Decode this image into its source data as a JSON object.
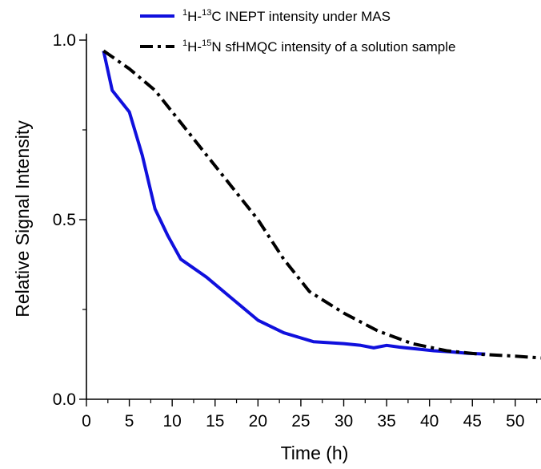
{
  "chart_data": {
    "type": "line",
    "title": "",
    "xlabel": "Time (h)",
    "ylabel": "Relative Signal Intensity",
    "xlim": [
      0,
      53
    ],
    "ylim": [
      0.0,
      1.0
    ],
    "xticks": [
      0,
      5,
      10,
      15,
      20,
      25,
      30,
      35,
      40,
      45,
      50
    ],
    "yticks": [
      0.0,
      0.5,
      1.0
    ],
    "ytick_labels": [
      "0.0",
      "0.5",
      "1.0"
    ],
    "grid": false,
    "legend_position": "top",
    "series": [
      {
        "name": "1H-13C INEPT intensity under MAS",
        "legend_parts": {
          "sup1": "1",
          "base1": "H-",
          "sup2": "13",
          "base2": "C INEPT intensity under MAS"
        },
        "color": "#1010dd",
        "style": "solid",
        "x": [
          2,
          3,
          5,
          6.5,
          8,
          9.5,
          11,
          14,
          17,
          20,
          23,
          26.5,
          28,
          30,
          32,
          33.5,
          35,
          36.5,
          38.5,
          40.5,
          42.5,
          44.5,
          46.5
        ],
        "y": [
          0.97,
          0.86,
          0.8,
          0.68,
          0.53,
          0.455,
          0.39,
          0.34,
          0.28,
          0.22,
          0.185,
          0.16,
          0.158,
          0.155,
          0.15,
          0.143,
          0.15,
          0.145,
          0.14,
          0.135,
          0.132,
          0.128,
          0.126
        ]
      },
      {
        "name": "1H-15N sfHMQC intensity of a solution sample",
        "legend_parts": {
          "sup1": "1",
          "base1": "H-",
          "sup2": "15",
          "base2": "N sfHMQC intensity of a solution sample"
        },
        "color": "#000000",
        "style": "dashdot",
        "x": [
          2,
          5,
          8,
          11,
          14,
          17,
          20,
          23,
          26,
          30,
          34,
          38,
          42,
          46,
          50,
          53
        ],
        "y": [
          0.97,
          0.92,
          0.86,
          0.77,
          0.68,
          0.59,
          0.5,
          0.39,
          0.3,
          0.24,
          0.19,
          0.155,
          0.135,
          0.125,
          0.12,
          0.115
        ]
      }
    ]
  }
}
